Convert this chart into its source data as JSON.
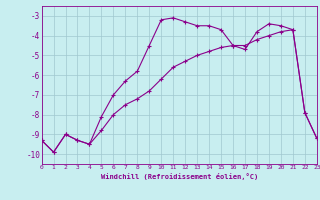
{
  "xlabel": "Windchill (Refroidissement éolien,°C)",
  "background_color": "#c8eef0",
  "grid_color": "#a0c8d0",
  "line_color": "#8b008b",
  "x_min": 0,
  "x_max": 23,
  "y_min": -10.5,
  "y_max": -2.5,
  "yticks": [
    -10,
    -9,
    -8,
    -7,
    -6,
    -5,
    -4,
    -3
  ],
  "xticks": [
    0,
    1,
    2,
    3,
    4,
    5,
    6,
    7,
    8,
    9,
    10,
    11,
    12,
    13,
    14,
    15,
    16,
    17,
    18,
    19,
    20,
    21,
    22,
    23
  ],
  "line1_x": [
    0,
    1,
    2,
    3,
    4,
    5,
    6,
    7,
    8,
    9,
    10,
    11,
    12,
    13,
    14,
    15,
    16,
    17,
    18,
    19,
    20,
    21,
    22,
    23
  ],
  "line1_y": [
    -9.3,
    -9.9,
    -9.0,
    -9.3,
    -9.5,
    -8.1,
    -7.0,
    -6.3,
    -5.8,
    -4.5,
    -3.2,
    -3.1,
    -3.3,
    -3.5,
    -3.5,
    -3.7,
    -4.5,
    -4.7,
    -3.8,
    -3.4,
    -3.5,
    -3.7,
    -7.9,
    -9.2
  ],
  "line2_x": [
    0,
    1,
    2,
    3,
    4,
    5,
    6,
    7,
    8,
    9,
    10,
    11,
    12,
    13,
    14,
    15,
    16,
    17,
    18,
    19,
    20,
    21,
    22,
    23
  ],
  "line2_y": [
    -9.3,
    -9.9,
    -9.0,
    -9.3,
    -9.5,
    -8.8,
    -8.0,
    -7.5,
    -7.2,
    -6.8,
    -6.2,
    -5.6,
    -5.3,
    -5.0,
    -4.8,
    -4.6,
    -4.5,
    -4.5,
    -4.2,
    -4.0,
    -3.8,
    -3.7,
    -7.9,
    -9.2
  ]
}
